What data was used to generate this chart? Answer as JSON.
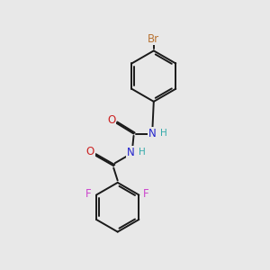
{
  "background_color": "#e8e8e8",
  "bond_color": "#1a1a1a",
  "bond_width": 1.4,
  "atom_colors": {
    "Br": "#b87333",
    "N": "#2222cc",
    "O": "#cc2222",
    "F": "#cc44cc",
    "H": "#33aaaa",
    "C": "#1a1a1a"
  },
  "font_size_atom": 8.5,
  "font_size_h": 7.5
}
